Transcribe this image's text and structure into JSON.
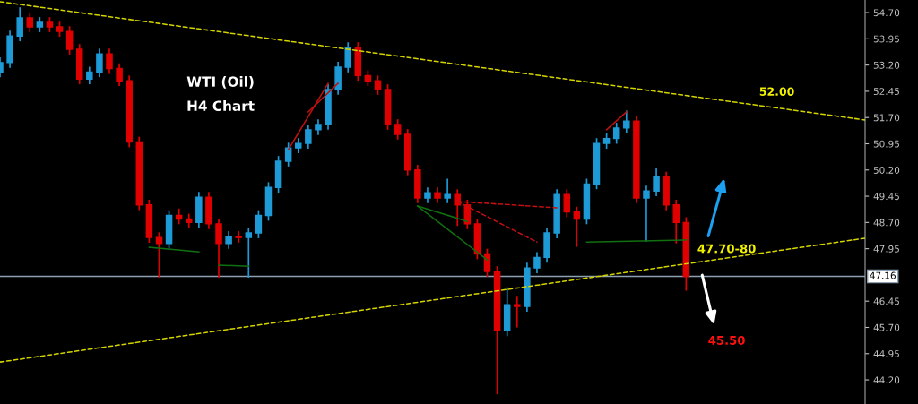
{
  "chart_data": {
    "type": "candlestick",
    "categories": [
      null,
      null,
      null,
      null,
      null,
      null,
      null,
      null,
      null,
      null,
      null,
      null,
      null,
      null,
      null,
      null,
      null,
      null,
      null,
      null,
      null,
      null,
      null,
      null,
      null,
      null,
      null,
      null,
      null,
      null,
      null,
      null,
      null,
      null,
      null,
      null,
      null,
      null,
      null,
      null,
      null,
      null,
      null,
      null,
      null,
      null,
      null,
      null,
      null,
      null,
      null,
      null,
      null,
      null,
      null,
      null,
      null,
      null,
      null,
      null,
      null,
      null,
      null,
      null,
      null,
      null,
      null,
      null,
      null,
      null,
      null,
      null,
      null,
      null,
      null,
      null,
      null,
      null,
      null,
      null,
      null,
      null,
      null,
      null,
      null,
      null,
      null,
      null
    ],
    "ohlc": [
      [
        53.0,
        53.42,
        52.85,
        53.27
      ],
      [
        53.27,
        54.18,
        53.12,
        54.03
      ],
      [
        54.03,
        54.85,
        53.88,
        54.55
      ],
      [
        54.55,
        54.7,
        54.14,
        54.29
      ],
      [
        54.29,
        54.57,
        54.14,
        54.42
      ],
      [
        54.42,
        54.57,
        54.14,
        54.29
      ],
      [
        54.29,
        54.44,
        54.01,
        54.16
      ],
      [
        54.16,
        54.31,
        53.5,
        53.65
      ],
      [
        53.65,
        53.8,
        52.65,
        52.8
      ],
      [
        52.8,
        53.15,
        52.65,
        53.0
      ],
      [
        53.0,
        53.67,
        52.85,
        53.52
      ],
      [
        53.52,
        53.67,
        52.95,
        53.1
      ],
      [
        53.1,
        53.25,
        52.6,
        52.75
      ],
      [
        52.75,
        52.9,
        50.85,
        51.0
      ],
      [
        51.0,
        51.15,
        49.05,
        49.2
      ],
      [
        49.2,
        49.35,
        48.12,
        48.27
      ],
      [
        48.27,
        48.42,
        47.12,
        48.1
      ],
      [
        48.1,
        49.05,
        47.95,
        48.9
      ],
      [
        48.9,
        49.1,
        48.65,
        48.8
      ],
      [
        48.8,
        48.95,
        48.55,
        48.7
      ],
      [
        48.7,
        49.57,
        48.55,
        49.42
      ],
      [
        49.42,
        49.57,
        48.51,
        48.66
      ],
      [
        48.66,
        48.81,
        47.12,
        48.1
      ],
      [
        48.1,
        48.45,
        47.95,
        48.3
      ],
      [
        48.3,
        48.45,
        48.12,
        48.27
      ],
      [
        48.27,
        48.55,
        47.12,
        48.4
      ],
      [
        48.4,
        49.05,
        48.25,
        48.9
      ],
      [
        48.9,
        49.85,
        48.75,
        49.7
      ],
      [
        49.7,
        50.6,
        49.55,
        50.45
      ],
      [
        50.45,
        50.98,
        50.3,
        50.83
      ],
      [
        50.83,
        51.11,
        50.68,
        50.96
      ],
      [
        50.96,
        51.5,
        50.81,
        51.35
      ],
      [
        51.35,
        51.65,
        51.2,
        51.5
      ],
      [
        51.5,
        52.65,
        51.35,
        52.5
      ],
      [
        52.5,
        53.29,
        52.35,
        53.14
      ],
      [
        53.14,
        53.85,
        52.99,
        53.7
      ],
      [
        53.7,
        53.85,
        52.75,
        52.9
      ],
      [
        52.9,
        53.05,
        52.6,
        52.75
      ],
      [
        52.75,
        52.9,
        52.35,
        52.5
      ],
      [
        52.5,
        52.65,
        51.35,
        51.5
      ],
      [
        51.5,
        51.65,
        51.07,
        51.22
      ],
      [
        51.22,
        51.37,
        50.05,
        50.2
      ],
      [
        50.2,
        50.35,
        49.25,
        49.4
      ],
      [
        49.4,
        49.7,
        49.25,
        49.55
      ],
      [
        49.55,
        49.7,
        49.25,
        49.4
      ],
      [
        49.4,
        49.95,
        49.25,
        49.5
      ],
      [
        49.5,
        49.65,
        48.6,
        49.2
      ],
      [
        49.2,
        49.35,
        48.51,
        48.66
      ],
      [
        48.66,
        48.81,
        47.65,
        47.8
      ],
      [
        47.8,
        47.95,
        47.15,
        47.3
      ],
      [
        47.3,
        47.45,
        43.79,
        45.6
      ],
      [
        45.6,
        46.85,
        45.45,
        46.35
      ],
      [
        46.35,
        46.6,
        45.7,
        46.3
      ],
      [
        46.3,
        47.55,
        46.15,
        47.4
      ],
      [
        47.4,
        47.85,
        47.25,
        47.7
      ],
      [
        47.7,
        48.55,
        47.55,
        48.4
      ],
      [
        48.4,
        49.65,
        48.25,
        49.5
      ],
      [
        49.5,
        49.65,
        48.85,
        49.0
      ],
      [
        49.0,
        49.15,
        48.0,
        48.8
      ],
      [
        48.8,
        49.95,
        48.65,
        49.8
      ],
      [
        49.8,
        51.11,
        49.65,
        50.96
      ],
      [
        50.96,
        51.25,
        50.81,
        51.1
      ],
      [
        51.1,
        51.55,
        50.95,
        51.4
      ],
      [
        51.4,
        51.9,
        51.25,
        51.6
      ],
      [
        51.6,
        51.75,
        49.25,
        49.4
      ],
      [
        49.4,
        49.75,
        48.15,
        49.6
      ],
      [
        49.6,
        50.25,
        49.45,
        50.0
      ],
      [
        50.0,
        50.15,
        49.05,
        49.2
      ],
      [
        49.2,
        49.35,
        48.1,
        48.7
      ],
      [
        48.7,
        48.85,
        46.75,
        47.16
      ],
      null,
      null,
      null,
      null,
      null,
      null,
      null,
      null,
      null,
      null,
      null,
      null,
      null,
      null,
      null,
      null,
      null,
      null
    ],
    "colors": [
      "#1e9ad6",
      "#1e9ad6",
      "#1e9ad6",
      "#e00000",
      "#1e9ad6",
      "#e00000",
      "#e00000",
      "#e00000",
      "#e00000",
      "#1e9ad6",
      "#1e9ad6",
      "#e00000",
      "#e00000",
      "#e00000",
      "#e00000",
      "#e00000",
      "#e00000",
      "#1e9ad6",
      "#e00000",
      "#e00000",
      "#1e9ad6",
      "#e00000",
      "#e00000",
      "#1e9ad6",
      "#e00000",
      "#1e9ad6",
      "#1e9ad6",
      "#1e9ad6",
      "#1e9ad6",
      "#1e9ad6",
      "#1e9ad6",
      "#1e9ad6",
      "#1e9ad6",
      "#1e9ad6",
      "#1e9ad6",
      "#1e9ad6",
      "#e00000",
      "#e00000",
      "#e00000",
      "#e00000",
      "#e00000",
      "#e00000",
      "#e00000",
      "#1e9ad6",
      "#e00000",
      "#1e9ad6",
      "#e00000",
      "#e00000",
      "#e00000",
      "#e00000",
      "#e00000",
      "#1e9ad6",
      "#e00000",
      "#1e9ad6",
      "#1e9ad6",
      "#1e9ad6",
      "#1e9ad6",
      "#e00000",
      "#e00000",
      "#1e9ad6",
      "#1e9ad6",
      "#1e9ad6",
      "#1e9ad6",
      "#1e9ad6",
      "#e00000",
      "#1e9ad6",
      "#1e9ad6",
      "#e00000",
      "#e00000",
      "#e00000",
      null,
      null,
      null,
      null,
      null,
      null,
      null,
      null,
      null,
      null,
      null,
      null,
      null,
      null,
      null,
      null,
      null,
      null
    ],
    "series": [
      {
        "type": "line",
        "color": "#d4d400",
        "line_style": "dashed",
        "values": [
          55.01,
          null,
          null,
          null,
          null,
          null,
          null,
          null,
          null,
          null,
          null,
          null,
          null,
          null,
          null,
          null,
          null,
          null,
          null,
          null,
          null,
          null,
          null,
          null,
          null,
          null,
          null,
          null,
          null,
          null,
          null,
          null,
          null,
          null,
          null,
          null,
          null,
          null,
          null,
          null,
          null,
          null,
          null,
          null,
          null,
          null,
          null,
          null,
          null,
          null,
          null,
          null,
          null,
          null,
          null,
          null,
          null,
          null,
          null,
          null,
          null,
          null,
          null,
          null,
          null,
          null,
          null,
          null,
          null,
          null,
          null,
          null,
          null,
          null,
          null,
          null,
          null,
          null,
          null,
          null,
          null,
          null,
          null,
          null,
          null,
          null,
          null,
          51.63
        ]
      },
      {
        "type": "line",
        "color": "#d4d400",
        "line_style": "dashed",
        "values": [
          44.71,
          null,
          null,
          null,
          null,
          null,
          null,
          null,
          null,
          null,
          null,
          null,
          null,
          null,
          null,
          null,
          null,
          null,
          null,
          null,
          null,
          null,
          null,
          null,
          null,
          null,
          null,
          null,
          null,
          null,
          null,
          null,
          null,
          null,
          null,
          null,
          null,
          null,
          null,
          null,
          null,
          null,
          null,
          null,
          null,
          null,
          null,
          null,
          null,
          null,
          null,
          null,
          null,
          null,
          null,
          null,
          null,
          null,
          null,
          null,
          null,
          null,
          null,
          null,
          null,
          null,
          null,
          null,
          null,
          null,
          null,
          null,
          null,
          null,
          null,
          null,
          null,
          null,
          null,
          null,
          null,
          null,
          null,
          null,
          null,
          null,
          null,
          48.25
        ]
      },
      {
        "type": "line",
        "color": "#107010",
        "line_style": "solid",
        "values": [
          null,
          null,
          null,
          null,
          null,
          null,
          null,
          null,
          null,
          null,
          null,
          null,
          null,
          null,
          null,
          47.99,
          null,
          null,
          null,
          null,
          47.86,
          null,
          null,
          null,
          null,
          null,
          null,
          null,
          null,
          null,
          null,
          null,
          null,
          null,
          null,
          null,
          null,
          null,
          null,
          null,
          null,
          null,
          null,
          null,
          null,
          null,
          null,
          null,
          null,
          null,
          null,
          null,
          null,
          null,
          null,
          null,
          null,
          null,
          null,
          null,
          null,
          null,
          null,
          null,
          null,
          null,
          null,
          null,
          null,
          null,
          null,
          null,
          null,
          null,
          null,
          null,
          null,
          null,
          null,
          null,
          null,
          null,
          null,
          null,
          null,
          null,
          null,
          null
        ]
      },
      {
        "type": "line",
        "color": "#107010",
        "line_style": "solid",
        "values": [
          null,
          null,
          null,
          null,
          null,
          null,
          null,
          null,
          null,
          null,
          null,
          null,
          null,
          null,
          null,
          null,
          null,
          null,
          null,
          null,
          null,
          null,
          47.48,
          null,
          null,
          47.45,
          null,
          null,
          null,
          null,
          null,
          null,
          null,
          null,
          null,
          null,
          null,
          null,
          null,
          null,
          null,
          null,
          null,
          null,
          null,
          null,
          null,
          null,
          null,
          null,
          null,
          null,
          null,
          null,
          null,
          null,
          null,
          null,
          null,
          null,
          null,
          null,
          null,
          null,
          null,
          null,
          null,
          null,
          null,
          null,
          null,
          null,
          null,
          null,
          null,
          null,
          null,
          null,
          null,
          null,
          null,
          null,
          null,
          null,
          null,
          null,
          null,
          null
        ]
      },
      {
        "type": "line",
        "color": "#107010",
        "line_style": "solid",
        "values": [
          null,
          null,
          null,
          null,
          null,
          null,
          null,
          null,
          null,
          null,
          null,
          null,
          null,
          null,
          null,
          null,
          null,
          null,
          null,
          null,
          null,
          null,
          null,
          null,
          null,
          null,
          null,
          null,
          null,
          null,
          null,
          null,
          null,
          null,
          null,
          null,
          null,
          null,
          null,
          null,
          null,
          null,
          49.17,
          null,
          null,
          null,
          null,
          48.73,
          null,
          null,
          null,
          null,
          null,
          null,
          null,
          null,
          null,
          null,
          null,
          null,
          null,
          null,
          null,
          null,
          null,
          null,
          null,
          null,
          null,
          null,
          null,
          null,
          null,
          null,
          null,
          null,
          null,
          null,
          null,
          null,
          null,
          null,
          null,
          null,
          null,
          null,
          null,
          null
        ]
      },
      {
        "type": "line",
        "color": "#107010",
        "line_style": "solid",
        "values": [
          null,
          null,
          null,
          null,
          null,
          null,
          null,
          null,
          null,
          null,
          null,
          null,
          null,
          null,
          null,
          null,
          null,
          null,
          null,
          null,
          null,
          null,
          null,
          null,
          null,
          null,
          null,
          null,
          null,
          null,
          null,
          null,
          null,
          null,
          null,
          null,
          null,
          null,
          null,
          null,
          null,
          null,
          49.17,
          null,
          null,
          null,
          null,
          null,
          null,
          47.63,
          null,
          null,
          null,
          null,
          null,
          null,
          null,
          null,
          null,
          null,
          null,
          null,
          null,
          null,
          null,
          null,
          null,
          null,
          null,
          null,
          null,
          null,
          null,
          null,
          null,
          null,
          null,
          null,
          null,
          null,
          null,
          null,
          null,
          null,
          null,
          null,
          null,
          null
        ]
      },
      {
        "type": "line",
        "color": "#107010",
        "line_style": "solid",
        "values": [
          null,
          null,
          null,
          null,
          null,
          null,
          null,
          null,
          null,
          null,
          null,
          null,
          null,
          null,
          null,
          null,
          null,
          null,
          null,
          null,
          null,
          null,
          null,
          null,
          null,
          null,
          null,
          null,
          null,
          null,
          null,
          null,
          null,
          null,
          null,
          null,
          null,
          null,
          null,
          null,
          null,
          null,
          null,
          null,
          null,
          null,
          null,
          null,
          null,
          null,
          null,
          null,
          null,
          null,
          null,
          null,
          null,
          null,
          null,
          48.14,
          null,
          null,
          null,
          null,
          null,
          null,
          null,
          null,
          null,
          48.2,
          null,
          null,
          null,
          null,
          null,
          null,
          null,
          null,
          null,
          null,
          null,
          null,
          null,
          null,
          null,
          null,
          null,
          null
        ]
      },
      {
        "type": "line",
        "color": "#c01010",
        "line_style": "solid",
        "values": [
          null,
          null,
          null,
          null,
          null,
          null,
          null,
          null,
          null,
          null,
          null,
          null,
          null,
          null,
          null,
          null,
          null,
          null,
          null,
          null,
          null,
          null,
          null,
          null,
          null,
          null,
          null,
          null,
          null,
          50.78,
          null,
          null,
          null,
          52.68,
          null,
          null,
          null,
          null,
          null,
          null,
          null,
          null,
          null,
          null,
          null,
          null,
          null,
          null,
          null,
          null,
          null,
          null,
          null,
          null,
          null,
          null,
          null,
          null,
          null,
          null,
          null,
          null,
          null,
          null,
          null,
          null,
          null,
          null,
          null,
          null,
          null,
          null,
          null,
          null,
          null,
          null,
          null,
          null,
          null,
          null,
          null,
          null,
          null,
          null,
          null,
          null,
          null,
          null
        ]
      },
      {
        "type": "line",
        "color": "#c01010",
        "line_style": "solid",
        "values": [
          null,
          null,
          null,
          null,
          null,
          null,
          null,
          null,
          null,
          null,
          null,
          null,
          null,
          null,
          null,
          null,
          null,
          null,
          null,
          null,
          null,
          null,
          null,
          null,
          null,
          null,
          null,
          null,
          null,
          null,
          null,
          51.86,
          null,
          null,
          52.68,
          null,
          null,
          null,
          null,
          null,
          null,
          null,
          null,
          null,
          null,
          null,
          null,
          null,
          null,
          null,
          null,
          null,
          null,
          null,
          null,
          null,
          null,
          null,
          null,
          null,
          null,
          null,
          null,
          null,
          null,
          null,
          null,
          null,
          null,
          null,
          null,
          null,
          null,
          null,
          null,
          null,
          null,
          null,
          null,
          null,
          null,
          null,
          null,
          null,
          null,
          null,
          null,
          null
        ]
      },
      {
        "type": "line",
        "color": "#c01010",
        "line_style": "dashed",
        "values": [
          null,
          null,
          null,
          null,
          null,
          null,
          null,
          null,
          null,
          null,
          null,
          null,
          null,
          null,
          null,
          null,
          null,
          null,
          null,
          null,
          null,
          null,
          null,
          null,
          null,
          null,
          null,
          null,
          null,
          null,
          null,
          null,
          null,
          null,
          null,
          null,
          null,
          null,
          null,
          null,
          null,
          null,
          null,
          null,
          null,
          null,
          49.3,
          null,
          null,
          null,
          null,
          null,
          null,
          null,
          null,
          null,
          49.12,
          null,
          null,
          null,
          null,
          null,
          null,
          null,
          null,
          null,
          null,
          null,
          null,
          null,
          null,
          null,
          null,
          null,
          null,
          null,
          null,
          null,
          null,
          null,
          null,
          null,
          null,
          null,
          null,
          null,
          null,
          null
        ]
      },
      {
        "type": "line",
        "color": "#c01010",
        "line_style": "dashed",
        "values": [
          null,
          null,
          null,
          null,
          null,
          null,
          null,
          null,
          null,
          null,
          null,
          null,
          null,
          null,
          null,
          null,
          null,
          null,
          null,
          null,
          null,
          null,
          null,
          null,
          null,
          null,
          null,
          null,
          null,
          null,
          null,
          null,
          null,
          null,
          null,
          null,
          null,
          null,
          null,
          null,
          null,
          null,
          null,
          null,
          null,
          null,
          49.3,
          null,
          null,
          null,
          null,
          null,
          null,
          null,
          48.14,
          null,
          null,
          null,
          null,
          null,
          null,
          null,
          null,
          null,
          null,
          null,
          null,
          null,
          null,
          null,
          null,
          null,
          null,
          null,
          null,
          null,
          null,
          null,
          null,
          null,
          null,
          null,
          null,
          null,
          null,
          null,
          null,
          null
        ]
      },
      {
        "type": "line",
        "color": "#c01010",
        "line_style": "solid",
        "values": [
          null,
          null,
          null,
          null,
          null,
          null,
          null,
          null,
          null,
          null,
          null,
          null,
          null,
          null,
          null,
          null,
          null,
          null,
          null,
          null,
          null,
          null,
          null,
          null,
          null,
          null,
          null,
          null,
          null,
          null,
          null,
          null,
          null,
          null,
          null,
          null,
          null,
          null,
          null,
          null,
          null,
          null,
          null,
          null,
          null,
          null,
          null,
          null,
          null,
          null,
          null,
          null,
          null,
          null,
          null,
          null,
          null,
          null,
          null,
          null,
          null,
          51.35,
          null,
          51.86,
          null,
          null,
          null,
          null,
          null,
          null,
          null,
          null,
          null,
          null,
          null,
          null,
          null,
          null,
          null,
          null,
          null,
          null,
          null,
          null,
          null,
          null,
          null,
          null
        ]
      }
    ],
    "ylim": [
      43.51,
      55.06
    ],
    "yticks": [
      {
        "value": 54.7,
        "label": "54.70"
      },
      {
        "value": 53.95,
        "label": "53.95"
      },
      {
        "value": 53.2,
        "label": "53.20"
      },
      {
        "value": 52.45,
        "label": "52.45"
      },
      {
        "value": 51.7,
        "label": "51.70"
      },
      {
        "value": 50.95,
        "label": "50.95"
      },
      {
        "value": 50.2,
        "label": "50.20"
      },
      {
        "value": 49.45,
        "label": "49.45"
      },
      {
        "value": 48.7,
        "label": "48.70"
      },
      {
        "value": 47.95,
        "label": "47.95"
      },
      {
        "value": 46.45,
        "label": "46.45"
      },
      {
        "value": 45.7,
        "label": "45.70"
      },
      {
        "value": 44.95,
        "label": "44.95"
      },
      {
        "value": 44.2,
        "label": "44.20"
      }
    ],
    "tick_labels": "y",
    "ref_lines": [
      {
        "axis": "y",
        "value": 47.16,
        "label": "47.16",
        "color": "#8da0b4"
      }
    ],
    "annotations": [
      "WTI (Oil)",
      "H4 Chart",
      "52.00",
      "47.70-80",
      "45.50"
    ],
    "grid": false
  }
}
